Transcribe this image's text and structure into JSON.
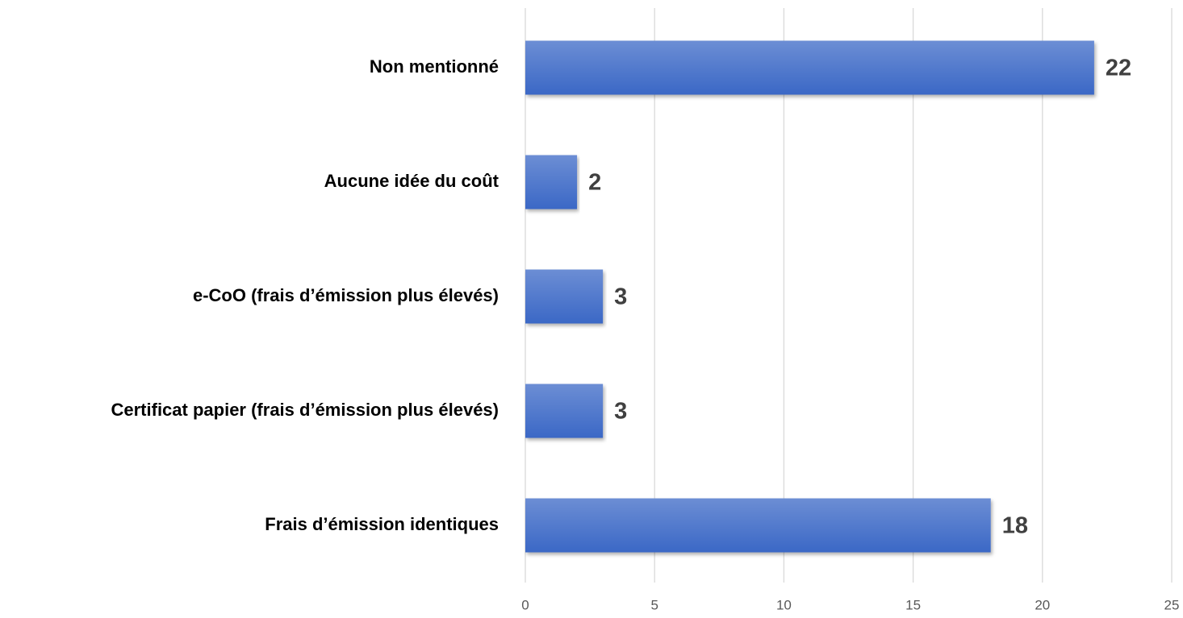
{
  "chart_data": {
    "type": "bar",
    "orientation": "horizontal",
    "categories": [
      "Non mentionné",
      "Aucune idée du coût",
      "e-CoO (frais d’émission plus élevés)",
      "Certificat papier (frais d’émission plus élevés)",
      "Frais d’émission identiques"
    ],
    "values": [
      22,
      2,
      3,
      3,
      18
    ],
    "color": "#3a68c6",
    "xlim": [
      0,
      25
    ],
    "xticks": [
      0,
      5,
      10,
      15,
      20,
      25
    ],
    "grid": true
  }
}
